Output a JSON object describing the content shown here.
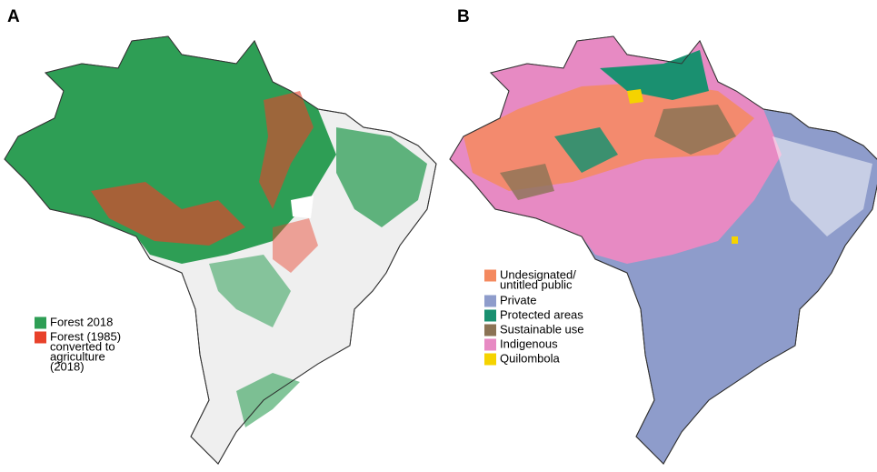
{
  "panels": [
    {
      "label": "A",
      "legend": [
        {
          "lines": [
            "Forest 2018"
          ],
          "color": "#2e9e55"
        },
        {
          "lines": [
            "Forest (1985)",
            "converted to",
            "agriculture",
            "(2018)"
          ],
          "color": "#e8412a"
        }
      ]
    },
    {
      "label": "B",
      "legend": [
        {
          "lines": [
            "Undesignated/",
            "untitled public"
          ],
          "color": "#f4895f"
        },
        {
          "lines": [
            "Private"
          ],
          "color": "#8e9ccb"
        },
        {
          "lines": [
            "Protected areas"
          ],
          "color": "#1a9070"
        },
        {
          "lines": [
            "Sustainable use"
          ],
          "color": "#8b7355"
        },
        {
          "lines": [
            "Indigenous"
          ],
          "color": "#e78ac3"
        },
        {
          "lines": [
            "Quilombola"
          ],
          "color": "#f5d300"
        }
      ]
    }
  ]
}
